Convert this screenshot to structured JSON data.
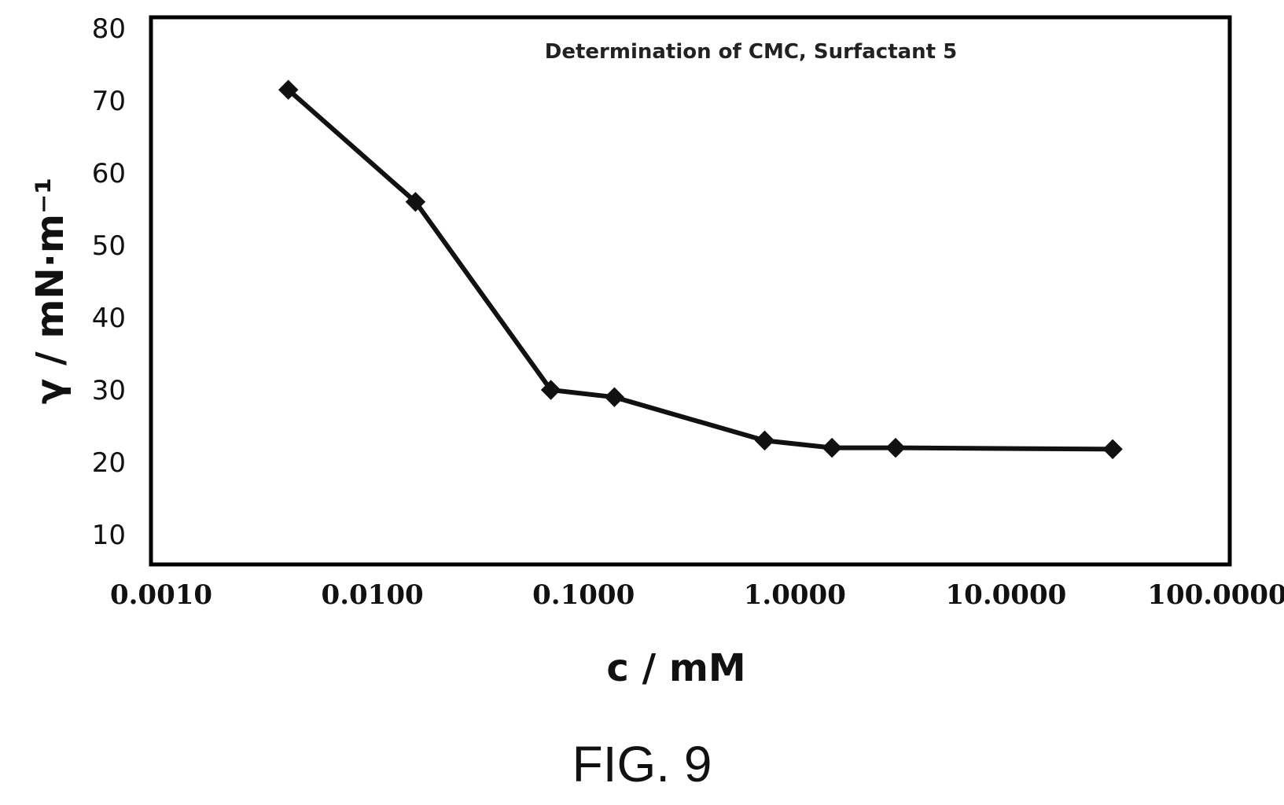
{
  "figure_caption": "FIG. 9",
  "chart_data": {
    "type": "line",
    "title": "Determination of CMC, Surfactant 5",
    "xlabel": "c / mM",
    "ylabel": "γ / mN·m⁻¹",
    "x_scale": "log",
    "xlim": [
      0.001,
      100
    ],
    "ylim": [
      6,
      81
    ],
    "x_tick_labels": [
      "0.0010",
      "0.0100",
      "0.1000",
      "1.0000",
      "10.0000",
      "100.0000"
    ],
    "y_tick_labels": [
      "10",
      "20",
      "30",
      "40",
      "50",
      "60",
      "70",
      "80"
    ],
    "grid": false,
    "series": [
      {
        "x": [
          0.004,
          0.016,
          0.07,
          0.14,
          0.72,
          1.5,
          3.0,
          32
        ],
        "y": [
          71.5,
          56,
          30,
          29,
          23,
          22,
          22,
          21.8
        ]
      }
    ],
    "line_color": "#111111"
  }
}
